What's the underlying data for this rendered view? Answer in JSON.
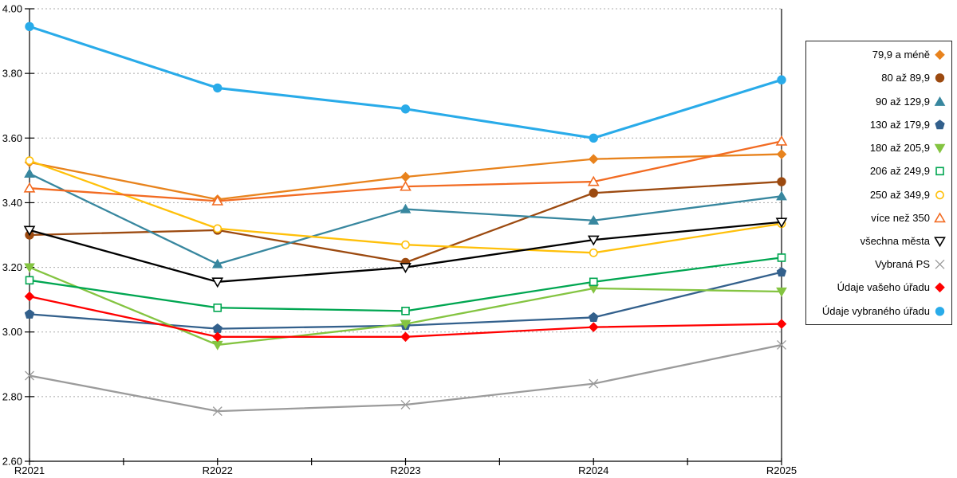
{
  "chart_data": {
    "type": "line",
    "title": "",
    "xlabel": "",
    "ylabel": "",
    "categories": [
      "R2021",
      "R2022",
      "R2023",
      "R2024",
      "R2025"
    ],
    "y_axis": {
      "min": 2.6,
      "max": 4.0,
      "step": 0.2,
      "tick_labels": [
        "4.00",
        "3.80",
        "3.60",
        "3.40",
        "3.20",
        "3.00",
        "2.80",
        "2.60"
      ]
    },
    "grid": {
      "horizontal": true,
      "style": "dotted",
      "color": "#ABABAB"
    },
    "legend": {
      "position": "right",
      "border": true
    },
    "series": [
      {
        "name": "79,9 a méně",
        "marker": "diamond",
        "fill": "filled",
        "color": "#E8831D",
        "values": [
          3.525,
          3.41,
          3.48,
          3.535,
          3.55
        ]
      },
      {
        "name": "80 až 89,9",
        "marker": "circle",
        "fill": "filled",
        "color": "#9C4A10",
        "values": [
          3.3,
          3.315,
          3.215,
          3.43,
          3.465
        ]
      },
      {
        "name": "90 až 129,9",
        "marker": "triangle-up",
        "fill": "filled",
        "color": "#38879F",
        "values": [
          3.49,
          3.21,
          3.38,
          3.345,
          3.42
        ]
      },
      {
        "name": "130 až 179,9",
        "marker": "pentagon",
        "fill": "filled",
        "color": "#33608C",
        "values": [
          3.055,
          3.01,
          3.02,
          3.045,
          3.185
        ]
      },
      {
        "name": "180 až 205,9",
        "marker": "triangle-down",
        "fill": "filled",
        "color": "#84C441",
        "values": [
          3.2,
          2.96,
          3.025,
          3.135,
          3.125
        ]
      },
      {
        "name": "206 až 249,9",
        "marker": "square",
        "fill": "hollow",
        "color": "#00A651",
        "values": [
          3.16,
          3.075,
          3.065,
          3.155,
          3.23
        ]
      },
      {
        "name": "250 až 349,9",
        "marker": "circle",
        "fill": "hollow",
        "color": "#FFC00A",
        "values": [
          3.53,
          3.32,
          3.27,
          3.245,
          3.335
        ]
      },
      {
        "name": "více než 350",
        "marker": "triangle-up",
        "fill": "hollow",
        "color": "#F26B22",
        "values": [
          3.445,
          3.405,
          3.45,
          3.465,
          3.59
        ]
      },
      {
        "name": "všechna města",
        "marker": "triangle-down",
        "fill": "hollow",
        "color": "#000000",
        "values": [
          3.315,
          3.155,
          3.2,
          3.285,
          3.34
        ]
      },
      {
        "name": "Vybraná PS",
        "marker": "x",
        "fill": "stroke",
        "color": "#9B9B9B",
        "values": [
          2.865,
          2.755,
          2.775,
          2.84,
          2.96
        ]
      },
      {
        "name": "Údaje vašeho úřadu",
        "marker": "diamond",
        "fill": "filled",
        "color": "#FF0000",
        "values": [
          3.11,
          2.985,
          2.985,
          3.015,
          3.025
        ]
      },
      {
        "name": "Údaje vybraného úřadu",
        "marker": "circle",
        "fill": "filled",
        "color": "#29ABE9",
        "values": [
          3.945,
          3.755,
          3.69,
          3.6,
          3.78
        ]
      }
    ]
  }
}
